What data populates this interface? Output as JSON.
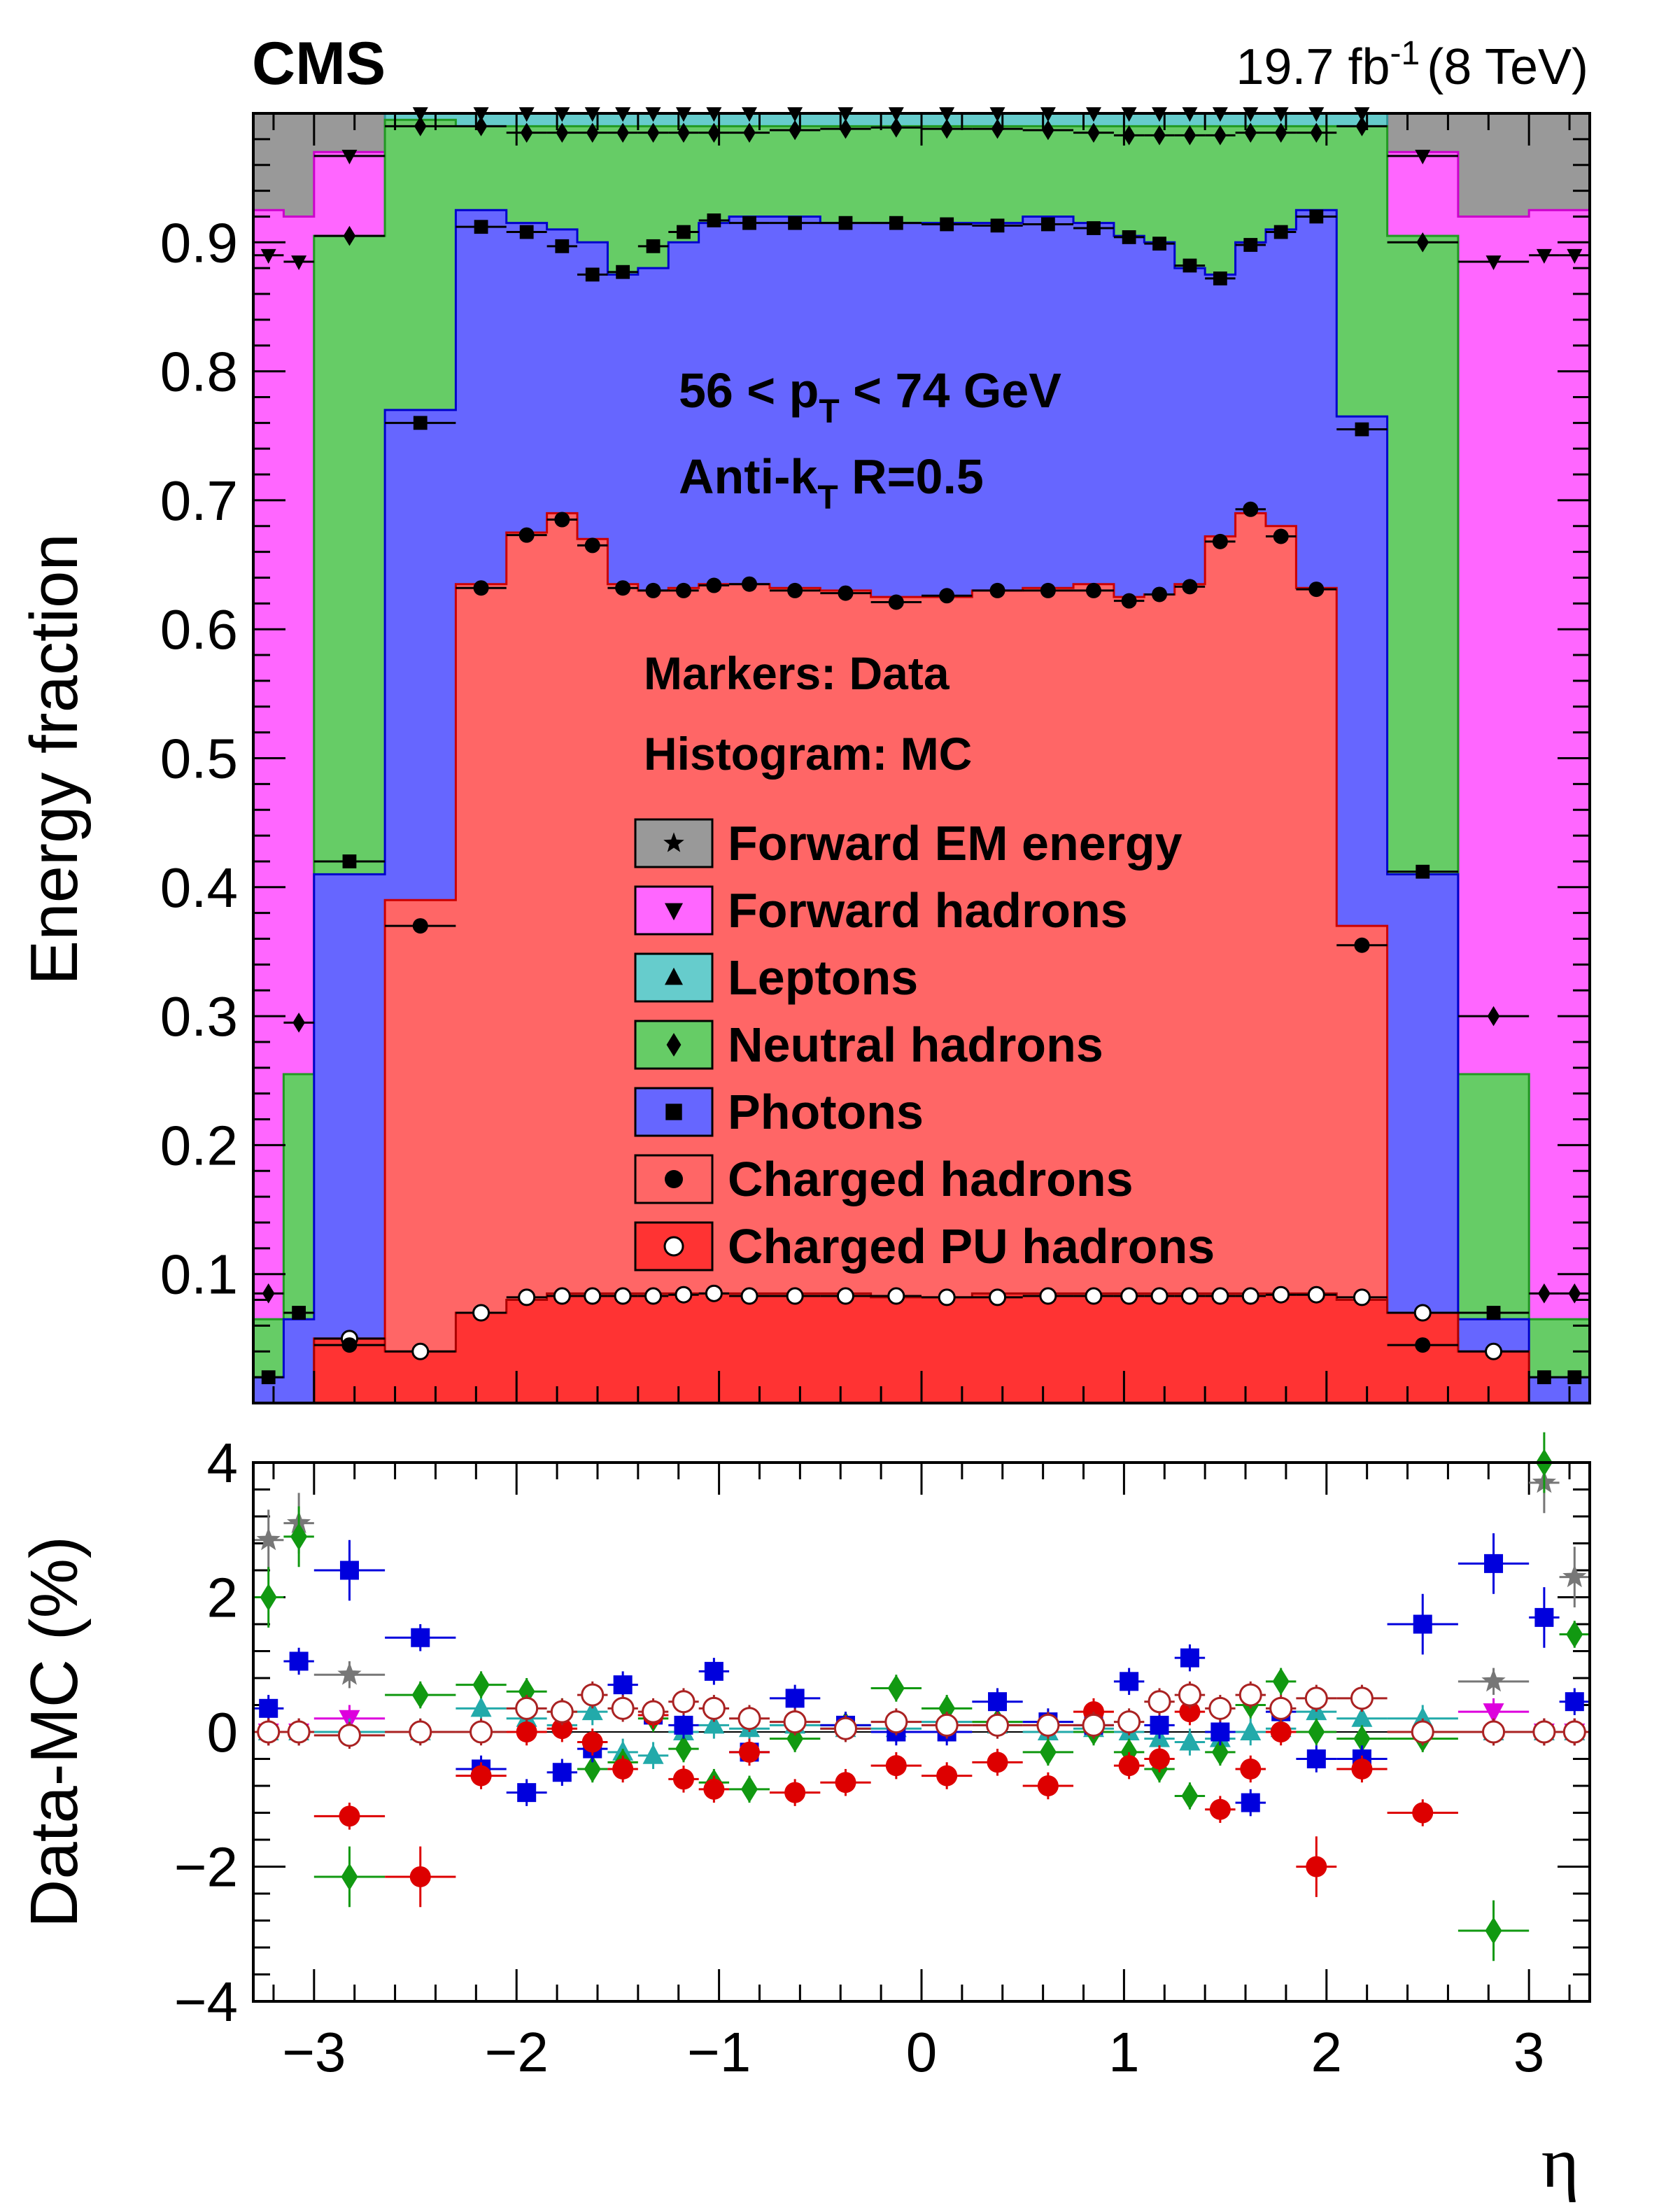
{
  "header": {
    "experiment": "CMS",
    "lumi": "19.7",
    "lumi_unit": "fb",
    "lumi_exp": "-1",
    "energy": "(8 TeV)"
  },
  "colors": {
    "forward_em": "#999999",
    "forward_had": "#ff66ff",
    "leptons": "#66cccc",
    "neutral_had": "#66cc66",
    "photons": "#6666ff",
    "charged_had": "#ff6666",
    "charged_pu": "#ff3333"
  },
  "chart_data": [
    {
      "type": "area",
      "ylabel": "Energy fraction",
      "xlim": [
        -3.3,
        3.3
      ],
      "ylim": [
        0.0,
        1.0
      ],
      "yticks": [
        "0.1",
        "0.2",
        "0.3",
        "0.4",
        "0.5",
        "0.6",
        "0.7",
        "0.8",
        "0.9"
      ],
      "annotations": {
        "pt_pre": "56 < p",
        "pt_sub": "T",
        "pt_post": " < 74 GeV",
        "algo_pre": "Anti-k",
        "algo_sub": "T",
        "algo_post": " R=0.5",
        "markers_note": "Markers: Data",
        "histogram_note": "Histogram: MC"
      },
      "legend": [
        {
          "label": "Forward EM energy",
          "marker": "star"
        },
        {
          "label": "Forward hadrons",
          "marker": "triangle-down"
        },
        {
          "label": "Leptons",
          "marker": "triangle-up"
        },
        {
          "label": "Neutral hadrons",
          "marker": "diamond"
        },
        {
          "label": "Photons",
          "marker": "square"
        },
        {
          "label": "Charged hadrons",
          "marker": "circle"
        },
        {
          "label": "Charged PU hadrons",
          "marker": "open-circle"
        }
      ],
      "bin_edges": [
        -3.3,
        -3.15,
        -3.0,
        -2.65,
        -2.3,
        -2.05,
        -1.85,
        -1.7,
        -1.55,
        -1.4,
        -1.25,
        -1.1,
        -0.95,
        -0.75,
        -0.5,
        -0.25,
        0.0,
        0.25,
        0.5,
        0.75,
        0.95,
        1.1,
        1.25,
        1.4,
        1.55,
        1.7,
        1.85,
        2.05,
        2.3,
        2.65,
        3.0,
        3.15,
        3.3
      ],
      "mc_cumulative": {
        "charged_pu": [
          0.0,
          0.0,
          0.05,
          0.04,
          0.07,
          0.08,
          0.085,
          0.085,
          0.085,
          0.085,
          0.085,
          0.085,
          0.085,
          0.085,
          0.085,
          0.082,
          0.082,
          0.085,
          0.085,
          0.085,
          0.085,
          0.085,
          0.085,
          0.085,
          0.085,
          0.085,
          0.085,
          0.08,
          0.07,
          0.04,
          0.0,
          0.0
        ],
        "charged_had": [
          0.0,
          0.0,
          0.05,
          0.39,
          0.635,
          0.675,
          0.69,
          0.67,
          0.635,
          0.63,
          0.632,
          0.635,
          0.635,
          0.632,
          0.63,
          0.625,
          0.625,
          0.63,
          0.632,
          0.635,
          0.625,
          0.627,
          0.635,
          0.672,
          0.69,
          0.68,
          0.632,
          0.37,
          0.05,
          0.0,
          0.0,
          0.0
        ],
        "photons": [
          0.02,
          0.065,
          0.41,
          0.77,
          0.925,
          0.915,
          0.91,
          0.9,
          0.875,
          0.88,
          0.9,
          0.915,
          0.92,
          0.92,
          0.915,
          0.915,
          0.915,
          0.915,
          0.92,
          0.915,
          0.905,
          0.9,
          0.88,
          0.875,
          0.9,
          0.91,
          0.925,
          0.765,
          0.41,
          0.065,
          0.02,
          0.02
        ],
        "neutral_had": [
          0.065,
          0.255,
          0.905,
          0.995,
          0.99,
          0.99,
          0.99,
          0.99,
          0.99,
          0.99,
          0.99,
          0.99,
          0.99,
          0.99,
          0.99,
          0.99,
          0.99,
          0.99,
          0.99,
          0.99,
          0.99,
          0.99,
          0.99,
          0.99,
          0.99,
          0.99,
          0.99,
          0.99,
          0.905,
          0.255,
          0.065,
          0.065
        ],
        "leptons": [
          0.065,
          0.255,
          0.905,
          1.0,
          1.0,
          1.0,
          1.0,
          1.0,
          1.0,
          1.0,
          1.0,
          1.0,
          1.0,
          1.0,
          1.0,
          1.0,
          1.0,
          1.0,
          1.0,
          1.0,
          1.0,
          1.0,
          1.0,
          1.0,
          1.0,
          1.0,
          1.0,
          1.0,
          0.905,
          0.255,
          0.065,
          0.065
        ],
        "forward_had": [
          0.925,
          0.92,
          0.97,
          1.0,
          1.0,
          1.0,
          1.0,
          1.0,
          1.0,
          1.0,
          1.0,
          1.0,
          1.0,
          1.0,
          1.0,
          1.0,
          1.0,
          1.0,
          1.0,
          1.0,
          1.0,
          1.0,
          1.0,
          1.0,
          1.0,
          1.0,
          1.0,
          1.0,
          0.97,
          0.92,
          0.925,
          0.925
        ],
        "forward_em": [
          1.0,
          1.0,
          1.0,
          1.0,
          1.0,
          1.0,
          1.0,
          1.0,
          1.0,
          1.0,
          1.0,
          1.0,
          1.0,
          1.0,
          1.0,
          1.0,
          1.0,
          1.0,
          1.0,
          1.0,
          1.0,
          1.0,
          1.0,
          1.0,
          1.0,
          1.0,
          1.0,
          1.0,
          1.0,
          1.0,
          1.0,
          1.0
        ]
      },
      "data_x": [
        -3.225,
        -3.075,
        -2.825,
        -2.475,
        -2.175,
        -1.95,
        -1.775,
        -1.625,
        -1.475,
        -1.325,
        -1.175,
        -1.025,
        -0.85,
        -0.625,
        -0.375,
        -0.125,
        0.125,
        0.375,
        0.625,
        0.85,
        1.025,
        1.175,
        1.325,
        1.475,
        1.625,
        1.775,
        1.95,
        2.175,
        2.475,
        2.825,
        3.075,
        3.225
      ],
      "data_points": {
        "charged_pu": [
          0.0,
          0.0,
          0.05,
          0.04,
          0.07,
          0.082,
          0.083,
          0.083,
          0.083,
          0.083,
          0.084,
          0.085,
          0.083,
          0.083,
          0.083,
          0.083,
          0.082,
          0.082,
          0.083,
          0.083,
          0.083,
          0.083,
          0.083,
          0.083,
          0.083,
          0.084,
          0.084,
          0.082,
          0.07,
          0.04,
          0.0,
          0.0
        ],
        "charged_had": [
          0.0,
          0.0,
          0.045,
          0.37,
          0.632,
          0.673,
          0.685,
          0.665,
          0.632,
          0.63,
          0.63,
          0.634,
          0.635,
          0.63,
          0.628,
          0.621,
          0.626,
          0.63,
          0.63,
          0.63,
          0.622,
          0.627,
          0.633,
          0.668,
          0.693,
          0.672,
          0.631,
          0.355,
          0.045,
          0.0,
          0.0,
          0.0
        ],
        "photons": [
          0.02,
          0.07,
          0.42,
          0.76,
          0.912,
          0.908,
          0.897,
          0.875,
          0.877,
          0.897,
          0.908,
          0.917,
          0.915,
          0.915,
          0.915,
          0.915,
          0.914,
          0.913,
          0.914,
          0.911,
          0.904,
          0.899,
          0.882,
          0.872,
          0.898,
          0.908,
          0.92,
          0.755,
          0.412,
          0.07,
          0.02,
          0.02
        ],
        "neutral_had": [
          0.085,
          0.295,
          0.905,
          0.99,
          0.99,
          0.985,
          0.985,
          0.985,
          0.985,
          0.985,
          0.985,
          0.985,
          0.985,
          0.987,
          0.988,
          0.989,
          0.988,
          0.988,
          0.987,
          0.985,
          0.983,
          0.983,
          0.983,
          0.983,
          0.985,
          0.985,
          0.985,
          0.99,
          0.9,
          0.3,
          0.085,
          0.085
        ],
        "forward_had": [
          0.89,
          0.885,
          0.967,
          1.0,
          1.0,
          1.0,
          1.0,
          1.0,
          1.0,
          1.0,
          1.0,
          1.0,
          1.0,
          1.0,
          1.0,
          1.0,
          1.0,
          1.0,
          1.0,
          1.0,
          1.0,
          1.0,
          1.0,
          1.0,
          1.0,
          1.0,
          1.0,
          1.0,
          0.967,
          0.885,
          0.89,
          0.89
        ]
      }
    },
    {
      "type": "scatter",
      "xlabel": "η",
      "ylabel": "Data-MC (%)",
      "xlim": [
        -3.3,
        3.3
      ],
      "ylim": [
        -4,
        4
      ],
      "xticks": [
        "−3",
        "−2",
        "−1",
        "0",
        "1",
        "2",
        "3"
      ],
      "yticks": [
        "−4",
        "−2",
        "0",
        "2",
        "4"
      ],
      "series": [
        {
          "key": "forward_em",
          "x": [
            -3.225,
            -3.075,
            -2.825,
            2.825,
            3.075,
            3.225
          ],
          "y": [
            2.85,
            3.1,
            0.85,
            0.75,
            3.7,
            2.3
          ]
        },
        {
          "key": "forward_had",
          "x": [
            -3.225,
            -3.075,
            -2.825,
            2.825,
            3.075,
            3.225
          ],
          "y": [
            0.0,
            0.0,
            0.2,
            0.3,
            0.0,
            0.0
          ]
        },
        {
          "key": "leptons",
          "x": [
            -3.225,
            -3.075,
            -2.825,
            -2.475,
            -2.175,
            -1.95,
            -1.775,
            -1.625,
            -1.475,
            -1.325,
            -1.175,
            -1.025,
            -0.85,
            -0.625,
            -0.375,
            -0.125,
            0.125,
            0.375,
            0.625,
            0.85,
            1.025,
            1.175,
            1.325,
            1.475,
            1.625,
            1.775,
            1.95,
            2.175,
            2.475,
            2.825,
            3.075,
            3.225
          ],
          "y": [
            0.0,
            0.0,
            0.0,
            0.0,
            0.35,
            0.2,
            0.1,
            0.3,
            -0.3,
            -0.35,
            0.0,
            0.1,
            0.05,
            0.1,
            0.05,
            0.05,
            0.15,
            0.1,
            0.0,
            0.05,
            0.0,
            -0.1,
            -0.15,
            -0.1,
            0.0,
            0.05,
            0.3,
            0.2,
            0.2,
            0.0,
            0.0,
            0.0
          ]
        },
        {
          "key": "neutral_had",
          "x": [
            -3.225,
            -3.075,
            -2.825,
            -2.475,
            -2.175,
            -1.95,
            -1.775,
            -1.625,
            -1.475,
            -1.325,
            -1.175,
            -1.025,
            -0.85,
            -0.625,
            -0.375,
            -0.125,
            0.125,
            0.375,
            0.625,
            0.85,
            1.025,
            1.175,
            1.325,
            1.475,
            1.625,
            1.775,
            1.95,
            2.175,
            2.475,
            2.825,
            3.075,
            3.225
          ],
          "y": [
            2.0,
            2.9,
            -2.15,
            0.55,
            0.7,
            0.6,
            0.3,
            -0.55,
            -0.45,
            0.2,
            -0.25,
            -0.75,
            -0.85,
            -0.1,
            0.1,
            0.65,
            0.35,
            0.15,
            -0.3,
            0.0,
            -0.3,
            -0.55,
            -0.95,
            -0.3,
            0.4,
            0.75,
            0.0,
            -0.1,
            -0.1,
            -2.95,
            4.0,
            1.45
          ]
        },
        {
          "key": "photons",
          "x": [
            -3.225,
            -3.075,
            -2.825,
            -2.475,
            -2.175,
            -1.95,
            -1.775,
            -1.625,
            -1.475,
            -1.325,
            -1.175,
            -1.025,
            -0.85,
            -0.625,
            -0.375,
            -0.125,
            0.125,
            0.375,
            0.625,
            0.85,
            1.025,
            1.175,
            1.325,
            1.475,
            1.625,
            1.775,
            1.95,
            2.175,
            2.475,
            2.825,
            3.075,
            3.225
          ],
          "y": [
            0.35,
            1.05,
            2.4,
            1.4,
            -0.55,
            -0.9,
            -0.6,
            -0.25,
            0.7,
            0.25,
            0.1,
            0.9,
            -0.3,
            0.5,
            0.1,
            0.0,
            0.0,
            0.45,
            0.15,
            0.1,
            0.75,
            0.1,
            1.1,
            0.0,
            -1.05,
            0.3,
            -0.4,
            -0.4,
            1.6,
            2.5,
            1.7,
            0.45
          ]
        },
        {
          "key": "charged_had",
          "x": [
            -3.225,
            -3.075,
            -2.825,
            -2.475,
            -2.175,
            -1.95,
            -1.775,
            -1.625,
            -1.475,
            -1.325,
            -1.175,
            -1.025,
            -0.85,
            -0.625,
            -0.375,
            -0.125,
            0.125,
            0.375,
            0.625,
            0.85,
            1.025,
            1.175,
            1.325,
            1.475,
            1.625,
            1.775,
            1.95,
            2.175,
            2.475,
            2.825,
            3.075,
            3.225
          ],
          "y": [
            0.0,
            0.0,
            -1.25,
            -2.15,
            -0.65,
            0.0,
            0.05,
            -0.15,
            -0.55,
            0.25,
            -0.7,
            -0.85,
            -0.3,
            -0.9,
            -0.75,
            -0.5,
            -0.65,
            -0.45,
            -0.8,
            0.3,
            -0.5,
            -0.4,
            0.3,
            -1.15,
            -0.55,
            0.0,
            -2.0,
            -0.55,
            -1.2,
            0.0,
            0.0,
            0.0
          ]
        },
        {
          "key": "charged_pu",
          "x": [
            -3.225,
            -3.075,
            -2.825,
            -2.475,
            -2.175,
            -1.95,
            -1.775,
            -1.625,
            -1.475,
            -1.325,
            -1.175,
            -1.025,
            -0.85,
            -0.625,
            -0.375,
            -0.125,
            0.125,
            0.375,
            0.625,
            0.85,
            1.025,
            1.175,
            1.325,
            1.475,
            1.625,
            1.775,
            1.95,
            2.175,
            2.475,
            2.825,
            3.075,
            3.225
          ],
          "y": [
            0.0,
            0.0,
            -0.05,
            0.0,
            0.0,
            0.35,
            0.3,
            0.55,
            0.35,
            0.3,
            0.45,
            0.35,
            0.2,
            0.15,
            0.05,
            0.15,
            0.1,
            0.1,
            0.1,
            0.1,
            0.15,
            0.45,
            0.55,
            0.35,
            0.55,
            0.35,
            0.5,
            0.5,
            0.0,
            0.0,
            0.0,
            0.0
          ]
        }
      ]
    }
  ]
}
